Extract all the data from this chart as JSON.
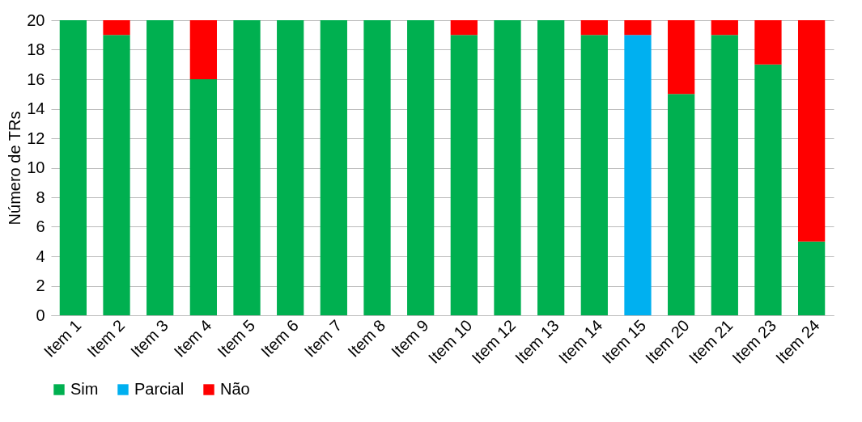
{
  "chart_data": {
    "type": "bar",
    "stacked": true,
    "ylabel": "Número de TRs",
    "categories": [
      "Item 1",
      "Item 2",
      "Item 3",
      "Item 4",
      "Item 5",
      "Item 6",
      "Item 7",
      "Item 8",
      "Item 9",
      "Item 10",
      "Item 12",
      "Item 13",
      "Item 14",
      "Item 15",
      "Item 20",
      "Item 21",
      "Item 23",
      "Item 24"
    ],
    "series": [
      {
        "name": "Sim",
        "color": "#00b050",
        "values": [
          20,
          19,
          20,
          16,
          20,
          20,
          20,
          20,
          20,
          19,
          20,
          20,
          19,
          0,
          15,
          19,
          17,
          5
        ]
      },
      {
        "name": "Parcial",
        "color": "#00b0f0",
        "values": [
          0,
          0,
          0,
          0,
          0,
          0,
          0,
          0,
          0,
          0,
          0,
          0,
          0,
          19,
          0,
          0,
          0,
          0
        ]
      },
      {
        "name": "Não",
        "color": "#ff0000",
        "values": [
          0,
          1,
          0,
          4,
          0,
          0,
          0,
          0,
          0,
          1,
          0,
          0,
          1,
          1,
          5,
          1,
          3,
          15
        ]
      }
    ],
    "ylim": [
      0,
      20
    ],
    "yticks": [
      0,
      2,
      4,
      6,
      8,
      10,
      12,
      14,
      16,
      18,
      20
    ],
    "grid": "y",
    "legend": "bottom"
  }
}
